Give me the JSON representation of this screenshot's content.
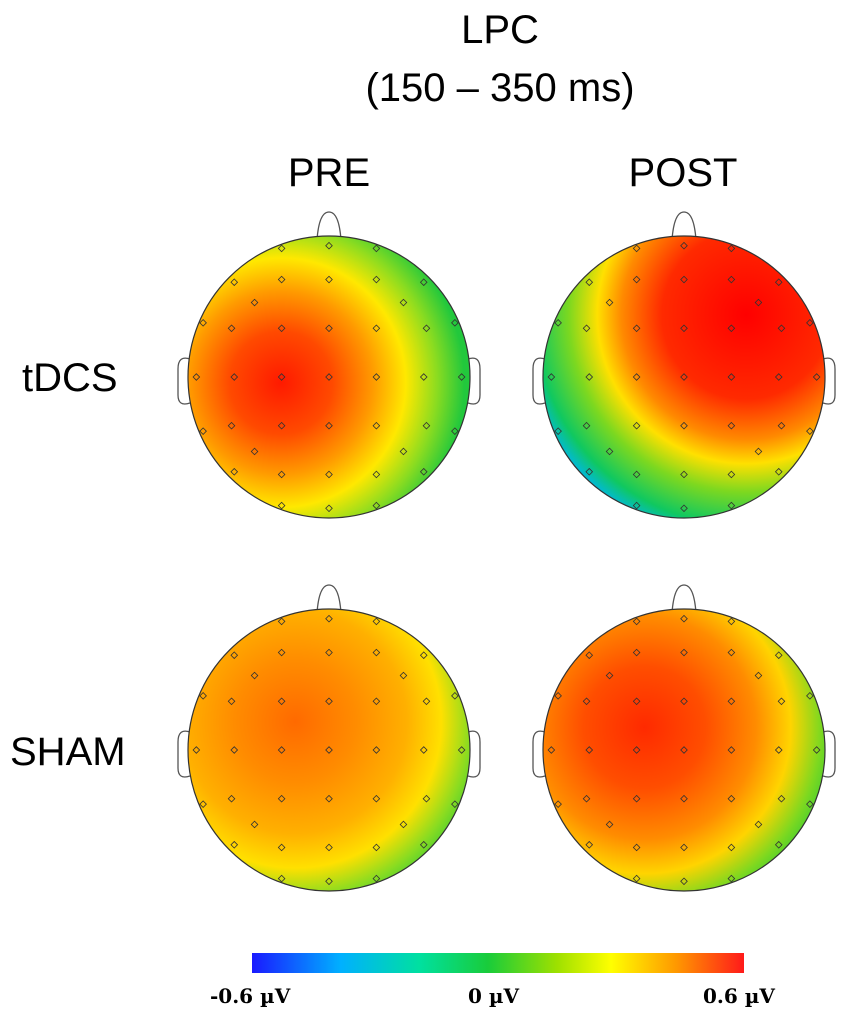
{
  "title": {
    "line1": "LPC",
    "line2": "(150 – 350 ms)"
  },
  "columns": [
    "PRE",
    "POST"
  ],
  "rows": [
    "tDCS",
    "SHAM"
  ],
  "colorbar": {
    "min_label": "-0.6 µV",
    "mid_label": "0 µV",
    "max_label": "0.6 µV",
    "min_value": -0.6,
    "max_value": 0.6,
    "unit": "µV",
    "colors": [
      "#1a1aff",
      "#00b0ff",
      "#00e0a0",
      "#19cc3a",
      "#9ee000",
      "#ffff00",
      "#ff9a00",
      "#ff1a1a"
    ]
  },
  "maps": [
    {
      "row": "tDCS",
      "column": "PRE",
      "peak_region": "left-central",
      "peak_value": 0.6,
      "edge_value": 0.0
    },
    {
      "row": "tDCS",
      "column": "POST",
      "peak_region": "right-frontal",
      "peak_value": 0.6,
      "edge_value": -0.5
    },
    {
      "row": "SHAM",
      "column": "PRE",
      "peak_region": "left-frontal",
      "peak_value": 0.45,
      "edge_value": 0.0
    },
    {
      "row": "SHAM",
      "column": "POST",
      "peak_region": "left-frontal",
      "peak_value": 0.55,
      "edge_value": 0.0
    }
  ]
}
